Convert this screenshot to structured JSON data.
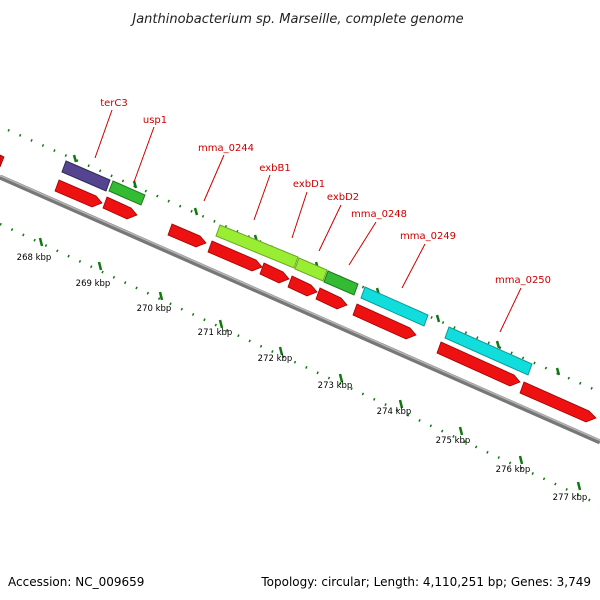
{
  "title": "Janthinobacterium sp. Marseille, complete genome",
  "footer": {
    "accession": "Accession: NC_009659",
    "topology": "Topology: circular; Length: 4,110,251 bp; Genes: 3,749"
  },
  "scale_labels": [
    "268 kbp",
    "269 kbp",
    "270 kbp",
    "271 kbp",
    "272 kbp",
    "273 kbp",
    "274 kbp",
    "275 kbp",
    "276 kbp",
    "277 kbp"
  ],
  "gene_labels": [
    "terC3",
    "usp1",
    "mma_0244",
    "exbB1",
    "exbD1",
    "exbD2",
    "mma_0248",
    "mma_0249",
    "mma_0250"
  ],
  "colors": {
    "cds": "#ee1111",
    "purple": "#55448f",
    "green": "#33bb33",
    "lime": "#99ee33",
    "cyan": "#11dddd",
    "backbone": "#888888",
    "ticks": "#117711"
  }
}
